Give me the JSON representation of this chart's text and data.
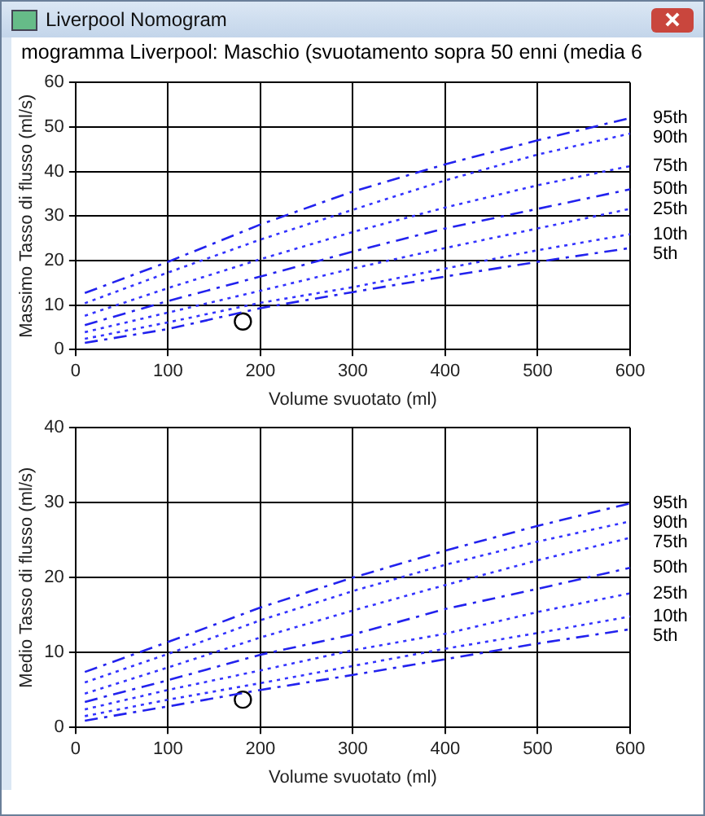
{
  "chart_data": [
    {
      "type": "line",
      "title": "mogramma Liverpool: Maschio (svuotamento sopra 50 enni (media 6",
      "annotations": [
        "Liverpool Nomogram"
      ],
      "xlabel": "Volume svuotato (ml)",
      "ylabel": "Massimo Tasso di flusso (ml/s)",
      "x": [
        10,
        100,
        200,
        300,
        400,
        500,
        600
      ],
      "xlim": [
        0,
        600
      ],
      "xticks": [
        0,
        100,
        200,
        300,
        400,
        500,
        600
      ],
      "ylim": [
        0,
        60
      ],
      "yticks": [
        0,
        10,
        20,
        30,
        40,
        50,
        60
      ],
      "grid": true,
      "series": [
        {
          "name": "95th",
          "color": "#2222ee",
          "line_style": "dashed",
          "values": [
            12.7,
            19.7,
            28.1,
            35.5,
            41.6,
            47,
            52
          ]
        },
        {
          "name": "90th",
          "color": "#3333ff",
          "line_style": "dotted",
          "values": [
            10.4,
            17.3,
            24.7,
            31.4,
            38,
            43.8,
            48.5
          ]
        },
        {
          "name": "75th",
          "color": "#3333ff",
          "line_style": "dotted",
          "values": [
            7.6,
            13.8,
            20.3,
            26.4,
            31.9,
            36.9,
            41.2
          ]
        },
        {
          "name": "50th",
          "color": "#2222ee",
          "line_style": "dashed",
          "values": [
            5.5,
            10.9,
            16.4,
            22,
            27.2,
            31.6,
            36
          ]
        },
        {
          "name": "25th",
          "color": "#3333ff",
          "line_style": "dotted",
          "values": [
            3.9,
            8.3,
            13.2,
            18.2,
            22.8,
            27.2,
            31.6
          ]
        },
        {
          "name": "10th",
          "color": "#3333ff",
          "line_style": "dotted",
          "values": [
            2.4,
            6.1,
            10.5,
            14,
            18.2,
            22.3,
            25.9
          ]
        },
        {
          "name": "5th",
          "color": "#2222ee",
          "line_style": "dashed",
          "values": [
            1.5,
            4.6,
            9.3,
            12.9,
            16.4,
            19.7,
            22.8
          ]
        },
        {
          "type": "scatter",
          "color": "#000000",
          "marker": "circle",
          "x": [
            181
          ],
          "values": [
            6.3
          ]
        }
      ]
    },
    {
      "type": "line",
      "xlabel": "Volume svuotato (ml)",
      "ylabel": "Medio Tasso di flusso (ml/s)",
      "x": [
        10,
        100,
        200,
        300,
        400,
        500,
        600
      ],
      "xlim": [
        0,
        600
      ],
      "xticks": [
        0,
        100,
        200,
        300,
        400,
        500,
        600
      ],
      "ylim": [
        0,
        40
      ],
      "yticks": [
        0,
        10,
        20,
        30,
        40
      ],
      "grid": true,
      "series": [
        {
          "name": "95th",
          "color": "#2222ee",
          "line_style": "dashed",
          "values": [
            7.4,
            11.4,
            16,
            20,
            23.6,
            26.9,
            29.9
          ]
        },
        {
          "name": "90th",
          "color": "#3333ff",
          "line_style": "dotted",
          "values": [
            6,
            9.8,
            14.3,
            18.2,
            21.7,
            24.8,
            27.5
          ]
        },
        {
          "name": "75th",
          "color": "#3333ff",
          "line_style": "dotted",
          "values": [
            4.5,
            8,
            12,
            15.6,
            19,
            22.3,
            25.3
          ]
        },
        {
          "name": "50th",
          "color": "#2222ee",
          "line_style": "dashed",
          "values": [
            3.4,
            6.3,
            9.7,
            12.4,
            15.8,
            18.5,
            21.3
          ]
        },
        {
          "name": "25th",
          "color": "#3333ff",
          "line_style": "dotted",
          "values": [
            2.4,
            5,
            7.6,
            10.3,
            12.5,
            15.4,
            17.9
          ]
        },
        {
          "name": "10th",
          "color": "#3333ff",
          "line_style": "dotted",
          "values": [
            1.5,
            3.7,
            5.9,
            8.2,
            10.5,
            12.6,
            14.8
          ]
        },
        {
          "name": "5th",
          "color": "#2222ee",
          "line_style": "dashed",
          "values": [
            0.9,
            2.8,
            5,
            7,
            9.1,
            11.2,
            13.1
          ]
        },
        {
          "type": "scatter",
          "color": "#000000",
          "marker": "circle",
          "x": [
            181
          ],
          "values": [
            3.7
          ]
        }
      ]
    }
  ]
}
